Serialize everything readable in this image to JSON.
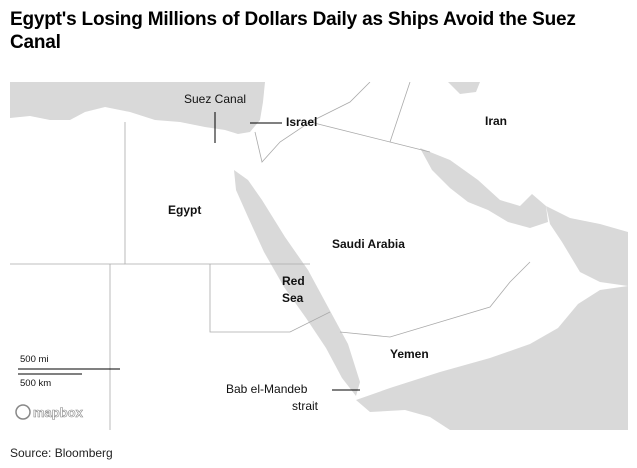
{
  "header": {
    "title": "Egypt's Losing Millions of Dollars Daily as Ships Avoid the Suez Canal"
  },
  "map": {
    "labels": {
      "suez_canal": "Suez Canal",
      "israel": "Israel",
      "iran": "Iran",
      "egypt": "Egypt",
      "saudi_arabia": "Saudi Arabia",
      "red_sea": [
        "Red",
        "Sea"
      ],
      "yemen": "Yemen",
      "bab_el_mandeb": [
        "Bab el-Mandeb",
        "strait"
      ]
    },
    "scale": {
      "miles": "500 mi",
      "kilometers": "500 km"
    },
    "attribution": "mapbox"
  },
  "footer": {
    "source": "Source: Bloomberg"
  }
}
